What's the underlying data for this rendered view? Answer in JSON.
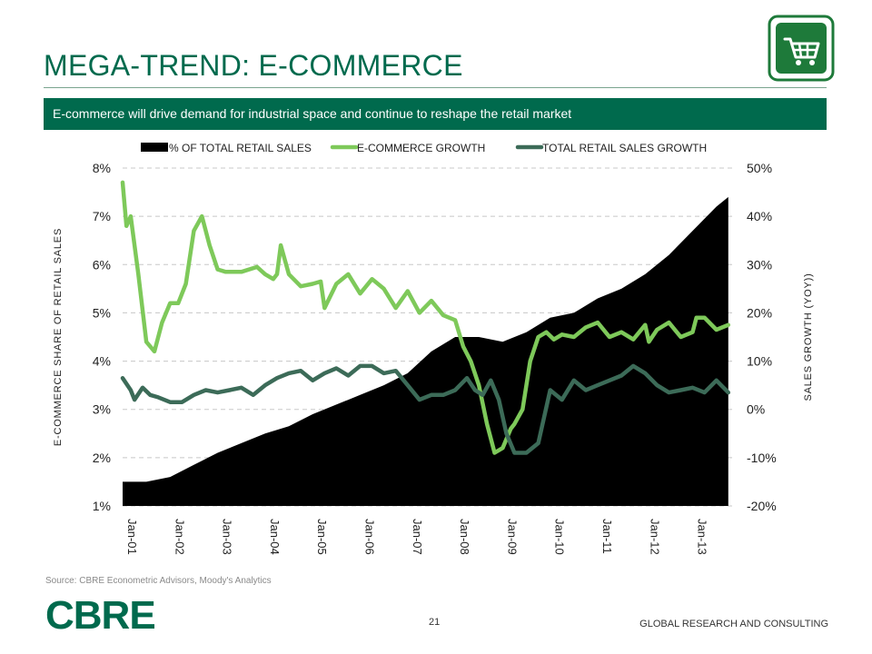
{
  "slide": {
    "title": "MEGA-TREND: E-COMMERCE",
    "subtitle": "E-commerce will drive demand for industrial space and continue to reshape the retail market",
    "icon": "shopping-cart-icon",
    "source": "Source:    CBRE Econometric Advisors, Moody's Analytics",
    "logo": "CBRE",
    "page_number": "21",
    "footer": "GLOBAL RESEARCH AND CONSULTING"
  },
  "colors": {
    "brand": "#006a4d",
    "area": "#000000",
    "ecommerce_growth": "#7ec95a",
    "total_growth": "#3c6b58"
  },
  "chart_data": {
    "type": "area",
    "title": "",
    "xlabel": "",
    "ylabel": "E-COMMERCE SHARE OF RETAIL SALES",
    "y2label": "SALES GROWTH (YOY))",
    "x_ticks": [
      "Jan-01",
      "Jan-02",
      "Jan-03",
      "Jan-04",
      "Jan-05",
      "Jan-06",
      "Jan-07",
      "Jan-08",
      "Jan-09",
      "Jan-10",
      "Jan-11",
      "Jan-12",
      "Jan-13"
    ],
    "y_ticks": [
      "8%",
      "7%",
      "6%",
      "5%",
      "4%",
      "3%",
      "2%",
      "1%"
    ],
    "y2_ticks": [
      "50%",
      "40%",
      "30%",
      "20%",
      "10%",
      "0%",
      "-10%",
      "-20%"
    ],
    "ylim": [
      1,
      8
    ],
    "y2lim": [
      -20,
      50
    ],
    "grid": true,
    "legend_position": "top",
    "series": [
      {
        "name": "% OF TOTAL RETAIL SALES",
        "axis": "left",
        "style": "area",
        "x": [
          2001.0,
          2001.5,
          2002.0,
          2002.5,
          2003.0,
          2003.5,
          2004.0,
          2004.5,
          2005.0,
          2005.5,
          2006.0,
          2006.5,
          2007.0,
          2007.5,
          2008.0,
          2008.5,
          2009.0,
          2009.5,
          2010.0,
          2010.5,
          2011.0,
          2011.5,
          2012.0,
          2012.5,
          2013.0,
          2013.5,
          2013.75
        ],
        "values": [
          1.5,
          1.5,
          1.6,
          1.85,
          2.1,
          2.3,
          2.5,
          2.65,
          2.9,
          3.1,
          3.3,
          3.5,
          3.75,
          4.2,
          4.5,
          4.5,
          4.4,
          4.6,
          4.9,
          5.0,
          5.3,
          5.5,
          5.8,
          6.2,
          6.7,
          7.2,
          7.4
        ]
      },
      {
        "name": "E-COMMERCE GROWTH",
        "axis": "right",
        "style": "line",
        "x": [
          2001.0,
          2001.08,
          2001.17,
          2001.33,
          2001.5,
          2001.67,
          2001.83,
          2002.0,
          2002.17,
          2002.33,
          2002.5,
          2002.67,
          2002.83,
          2003.0,
          2003.17,
          2003.5,
          2003.83,
          2004.0,
          2004.17,
          2004.25,
          2004.33,
          2004.5,
          2004.75,
          2005.0,
          2005.17,
          2005.25,
          2005.5,
          2005.75,
          2006.0,
          2006.25,
          2006.5,
          2006.75,
          2007.0,
          2007.25,
          2007.5,
          2007.75,
          2008.0,
          2008.17,
          2008.33,
          2008.5,
          2008.67,
          2008.83,
          2009.0,
          2009.17,
          2009.25,
          2009.42,
          2009.58,
          2009.75,
          2009.92,
          2010.08,
          2010.25,
          2010.5,
          2010.75,
          2011.0,
          2011.25,
          2011.5,
          2011.75,
          2012.0,
          2012.08,
          2012.25,
          2012.5,
          2012.75,
          2013.0,
          2013.08,
          2013.25,
          2013.5,
          2013.75
        ],
        "values": [
          47,
          38,
          40,
          28,
          14,
          12,
          18,
          22,
          22,
          26,
          37,
          40,
          34,
          29,
          28.5,
          28.5,
          29.5,
          28,
          27,
          28,
          34,
          28,
          25.5,
          26,
          26.5,
          21,
          26,
          28,
          24,
          27,
          25,
          21,
          24.5,
          20,
          22.5,
          19.5,
          18.5,
          13,
          10,
          5,
          -3,
          -9,
          -8,
          -4,
          -3,
          0,
          10,
          15,
          16,
          14.5,
          15.5,
          15,
          17,
          18,
          15,
          16,
          14.5,
          17.5,
          14,
          16.5,
          18,
          15,
          16,
          19,
          19,
          16.5,
          17.5
        ]
      },
      {
        "name": "TOTAL RETAIL SALES GROWTH",
        "axis": "right",
        "style": "line",
        "x": [
          2001.0,
          2001.17,
          2001.25,
          2001.42,
          2001.58,
          2001.75,
          2002.0,
          2002.25,
          2002.5,
          2002.75,
          2003.0,
          2003.25,
          2003.5,
          2003.75,
          2004.0,
          2004.25,
          2004.5,
          2004.75,
          2005.0,
          2005.25,
          2005.5,
          2005.75,
          2006.0,
          2006.25,
          2006.5,
          2006.75,
          2007.0,
          2007.25,
          2007.5,
          2007.75,
          2008.0,
          2008.25,
          2008.42,
          2008.58,
          2008.75,
          2008.92,
          2009.08,
          2009.25,
          2009.5,
          2009.75,
          2010.0,
          2010.25,
          2010.5,
          2010.75,
          2011.0,
          2011.25,
          2011.5,
          2011.75,
          2012.0,
          2012.25,
          2012.5,
          2012.75,
          2013.0,
          2013.25,
          2013.5,
          2013.75
        ],
        "values": [
          6.5,
          4,
          2,
          4.5,
          3,
          2.5,
          1.5,
          1.5,
          3,
          4,
          3.5,
          4,
          4.5,
          3,
          5,
          6.5,
          7.5,
          8,
          6,
          7.5,
          8.5,
          7,
          9,
          9,
          7.5,
          8,
          5,
          2,
          3,
          3,
          4,
          6.5,
          4,
          3,
          6,
          2,
          -5,
          -9,
          -9,
          -7,
          4,
          2,
          6,
          4,
          5,
          6,
          7,
          9,
          7.5,
          5,
          3.5,
          4,
          4.5,
          3.5,
          6,
          3.5
        ]
      }
    ]
  }
}
